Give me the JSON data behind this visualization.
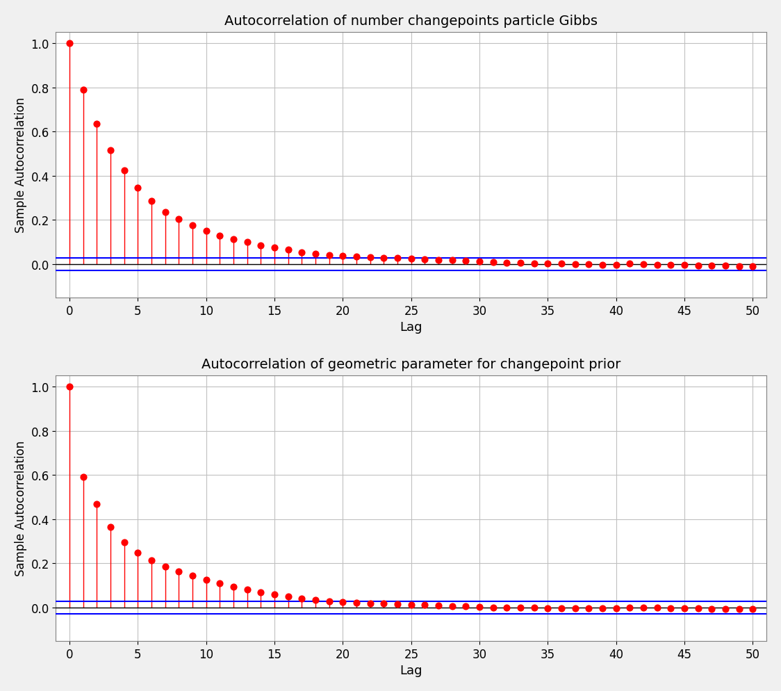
{
  "title1": "Autocorrelation of number changepoints particle Gibbs",
  "title2": "Autocorrelation of geometric parameter for changepoint prior",
  "xlabel": "Lag",
  "ylabel": "Sample Autocorrelation",
  "xlim": [
    -1,
    51
  ],
  "ylim": [
    -0.15,
    1.05
  ],
  "lags": [
    0,
    1,
    2,
    3,
    4,
    5,
    6,
    7,
    8,
    9,
    10,
    11,
    12,
    13,
    14,
    15,
    16,
    17,
    18,
    19,
    20,
    21,
    22,
    23,
    24,
    25,
    26,
    27,
    28,
    29,
    30,
    31,
    32,
    33,
    34,
    35,
    36,
    37,
    38,
    39,
    40,
    41,
    42,
    43,
    44,
    45,
    46,
    47,
    48,
    49,
    50
  ],
  "acf1": [
    1.0,
    0.79,
    0.635,
    0.515,
    0.425,
    0.345,
    0.285,
    0.235,
    0.205,
    0.175,
    0.15,
    0.13,
    0.115,
    0.1,
    0.085,
    0.075,
    0.065,
    0.055,
    0.048,
    0.042,
    0.038,
    0.035,
    0.032,
    0.03,
    0.028,
    0.025,
    0.022,
    0.02,
    0.018,
    0.015,
    0.012,
    0.01,
    0.008,
    0.006,
    0.004,
    0.003,
    0.002,
    0.001,
    0.0,
    -0.002,
    -0.003,
    0.002,
    0.001,
    -0.002,
    -0.003,
    -0.004,
    -0.005,
    -0.006,
    -0.007,
    -0.008,
    -0.008
  ],
  "acf2": [
    1.0,
    0.59,
    0.47,
    0.365,
    0.295,
    0.25,
    0.215,
    0.185,
    0.165,
    0.145,
    0.125,
    0.11,
    0.095,
    0.082,
    0.07,
    0.06,
    0.05,
    0.042,
    0.036,
    0.03,
    0.026,
    0.022,
    0.02,
    0.018,
    0.016,
    0.014,
    0.012,
    0.01,
    0.008,
    0.006,
    0.004,
    0.002,
    0.001,
    0.0,
    -0.001,
    -0.002,
    -0.003,
    -0.003,
    -0.004,
    -0.004,
    -0.004,
    0.002,
    0.001,
    -0.001,
    -0.002,
    -0.003,
    -0.004,
    -0.005,
    -0.006,
    -0.006,
    -0.007
  ],
  "confidence_level": 0.028,
  "stem_color": "#FF0000",
  "marker_color": "#FF0000",
  "zero_line_color": "#000000",
  "conf_line_color": "#0000FF",
  "bg_color": "#F0F0F0",
  "plot_bg_color": "#FFFFFF",
  "grid_color": "#C0C0C0",
  "xticks": [
    0,
    5,
    10,
    15,
    20,
    25,
    30,
    35,
    40,
    45,
    50
  ],
  "yticks": [
    0,
    0.2,
    0.4,
    0.6,
    0.8,
    1.0
  ]
}
